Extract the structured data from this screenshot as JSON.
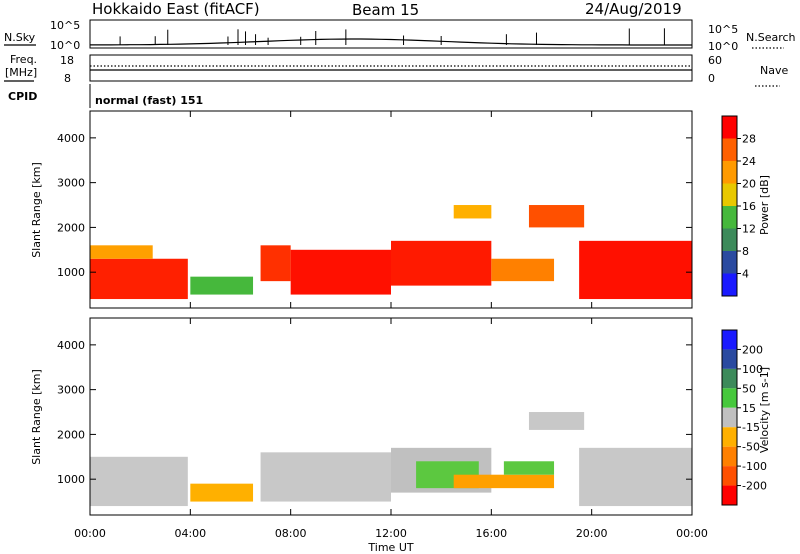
{
  "header": {
    "radar": "Hokkaido East (fitACF)",
    "beam": "Beam 15",
    "date": "24/Aug/2019"
  },
  "strips": {
    "nsky_label": "N.Sky",
    "nsky_ticks": [
      "10^5",
      "10^0"
    ],
    "nsearch_label": "N.Search",
    "freq_label_1": "Freq.",
    "freq_label_2": "[MHz]",
    "freq_ticks": [
      "18",
      "8"
    ],
    "nave_label": "Nave",
    "nave_ticks": [
      "60",
      "0"
    ],
    "cpid_label": "CPID",
    "cpid_value": "normal (fast) 151"
  },
  "chart_data": [
    {
      "type": "heatmap",
      "name": "power",
      "ylabel": "Slant Range [km]",
      "xlabel": "",
      "x_ticks": [
        "00:00",
        "04:00",
        "08:00",
        "12:00",
        "16:00",
        "20:00",
        "00:00"
      ],
      "y_ticks": [
        "1000",
        "2000",
        "3000",
        "4000"
      ],
      "colorbar_label": "Power [dB]",
      "colorbar_ticks": [
        "4",
        "8",
        "12",
        "16",
        "20",
        "24",
        "28"
      ],
      "colorbar_colors": [
        "#1a1aff",
        "#2a4aa0",
        "#3c8a5a",
        "#46b83c",
        "#e8c800",
        "#ff9a00",
        "#ff6000",
        "#ff0000"
      ],
      "bands": [
        {
          "t0": 0.0,
          "t1": 3.9,
          "r0": 400,
          "r1": 1300,
          "color": "#ff2000"
        },
        {
          "t0": 0.0,
          "t1": 2.5,
          "r0": 1300,
          "r1": 1600,
          "color": "#ffa000"
        },
        {
          "t0": 6.8,
          "t1": 8.0,
          "r0": 800,
          "r1": 1600,
          "color": "#ff3000"
        },
        {
          "t0": 8.0,
          "t1": 12.0,
          "r0": 500,
          "r1": 1500,
          "color": "#ff1000"
        },
        {
          "t0": 12.0,
          "t1": 16.0,
          "r0": 700,
          "r1": 1700,
          "color": "#ff1a00"
        },
        {
          "t0": 16.0,
          "t1": 18.5,
          "r0": 800,
          "r1": 1300,
          "color": "#ff8000"
        },
        {
          "t0": 17.5,
          "t1": 19.7,
          "r0": 2000,
          "r1": 2500,
          "color": "#ff5000"
        },
        {
          "t0": 19.5,
          "t1": 24.0,
          "r0": 400,
          "r1": 1700,
          "color": "#ff1000"
        },
        {
          "t0": 4.0,
          "t1": 6.5,
          "r0": 500,
          "r1": 900,
          "color": "#46b83c"
        },
        {
          "t0": 14.5,
          "t1": 16.0,
          "r0": 2200,
          "r1": 2500,
          "color": "#ffb000"
        }
      ]
    },
    {
      "type": "heatmap",
      "name": "velocity",
      "ylabel": "Slant Range [km]",
      "xlabel": "Time UT",
      "x_ticks": [
        "00:00",
        "04:00",
        "08:00",
        "12:00",
        "16:00",
        "20:00",
        "00:00"
      ],
      "y_ticks": [
        "1000",
        "2000",
        "3000",
        "4000"
      ],
      "colorbar_label": "Velocity [m s-1]",
      "colorbar_ticks": [
        "200",
        "100",
        "50",
        "15",
        "-15",
        "-50",
        "-100",
        "-200"
      ],
      "colorbar_colors": [
        "#1a1aff",
        "#2a4aa0",
        "#3c8a5a",
        "#46c83c",
        "#c0c0c0",
        "#ffb000",
        "#ff8000",
        "#ff5000",
        "#ff0000"
      ],
      "bands": [
        {
          "t0": 0.0,
          "t1": 3.9,
          "r0": 400,
          "r1": 1500,
          "color": "#c8c8c8"
        },
        {
          "t0": 6.8,
          "t1": 12.0,
          "r0": 500,
          "r1": 1600,
          "color": "#c8c8c8"
        },
        {
          "t0": 12.0,
          "t1": 16.0,
          "r0": 700,
          "r1": 1700,
          "color": "#c0c0c0"
        },
        {
          "t0": 13.0,
          "t1": 15.5,
          "r0": 800,
          "r1": 1400,
          "color": "#5cc840"
        },
        {
          "t0": 14.5,
          "t1": 18.5,
          "r0": 800,
          "r1": 1100,
          "color": "#ffa000"
        },
        {
          "t0": 16.5,
          "t1": 18.5,
          "r0": 1100,
          "r1": 1400,
          "color": "#5cc840"
        },
        {
          "t0": 17.5,
          "t1": 19.7,
          "r0": 2100,
          "r1": 2500,
          "color": "#c8c8c8"
        },
        {
          "t0": 19.5,
          "t1": 24.0,
          "r0": 400,
          "r1": 1700,
          "color": "#c8c8c8"
        },
        {
          "t0": 4.0,
          "t1": 6.5,
          "r0": 500,
          "r1": 900,
          "color": "#ffb000"
        }
      ]
    }
  ]
}
